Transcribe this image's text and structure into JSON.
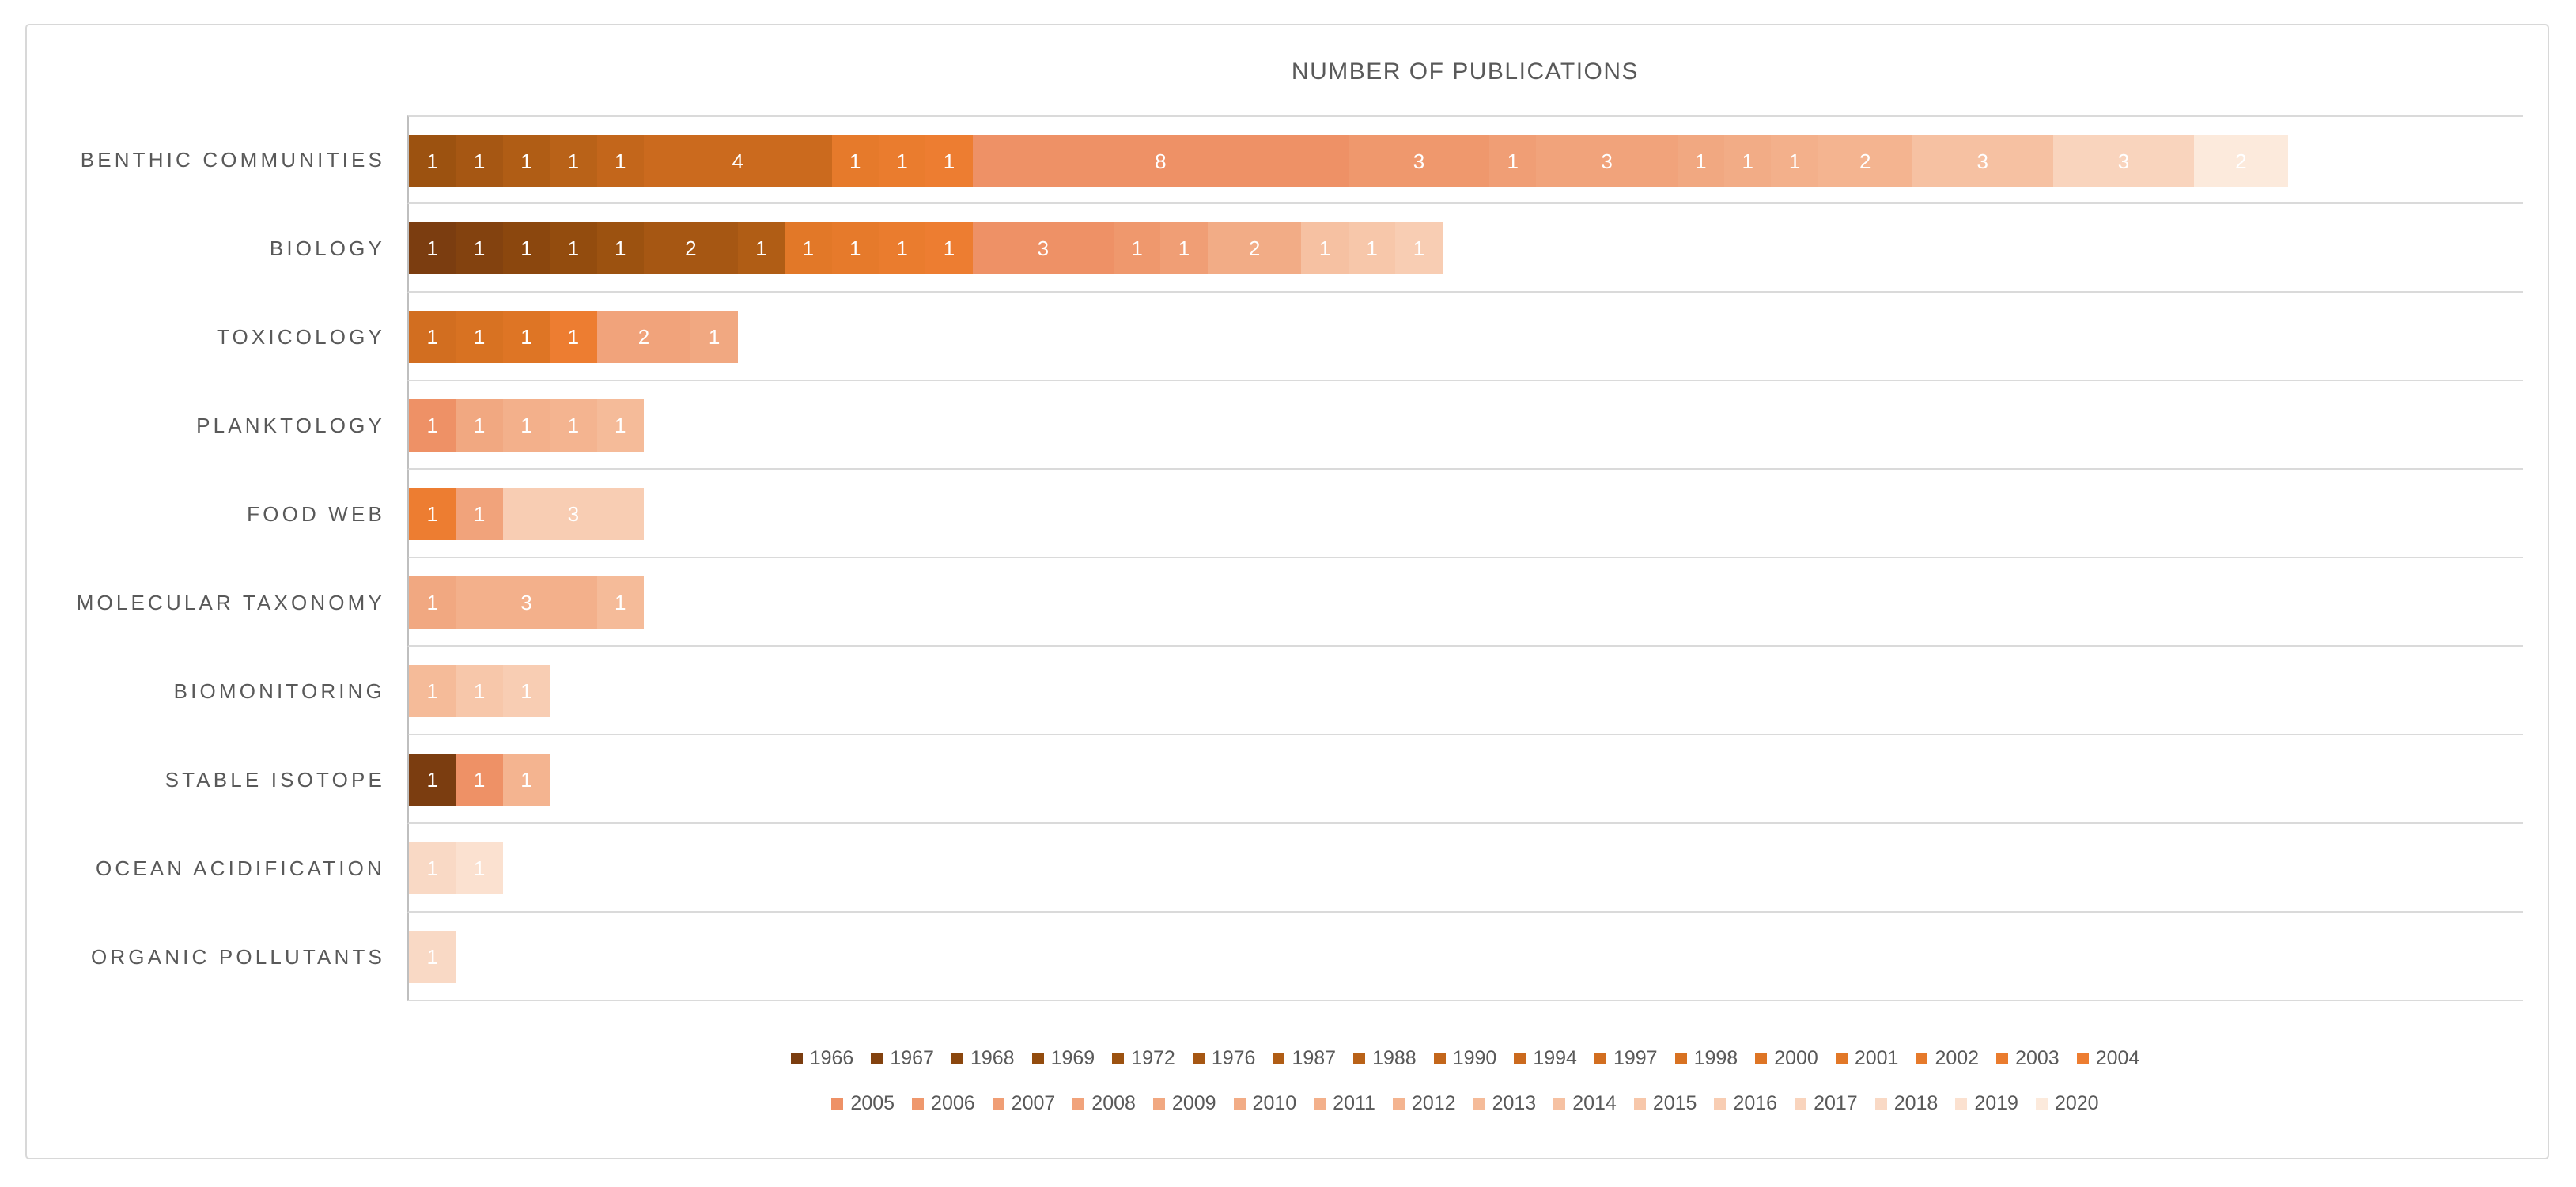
{
  "title": "NUMBER OF PUBLICATIONS",
  "styles": {
    "text_color": "#595959",
    "grid_color": "#DADADA",
    "axis_color": "#BFBFBF",
    "value_label_color": "#FFFFFF",
    "card_border_color": "#D8D8D8",
    "background": "#FFFFFF"
  },
  "chart_data": {
    "type": "bar",
    "orientation": "horizontal",
    "stacked": true,
    "title": "NUMBER OF PUBLICATIONS",
    "xlim": [
      0,
      45
    ],
    "grid": true,
    "legend_position": "bottom",
    "legend_rows": [
      [
        1966,
        1967,
        1968,
        1969,
        1972,
        1976,
        1987,
        1988,
        1990,
        1994,
        1997,
        1998,
        2000,
        2001,
        2002,
        2003,
        2004
      ],
      [
        2005,
        2006,
        2007,
        2008,
        2009,
        2010,
        2011,
        2012,
        2013,
        2014,
        2015,
        2016,
        2017,
        2018,
        2019,
        2020
      ]
    ],
    "year_colors": {
      "1966": "#7B3D10",
      "1967": "#83420F",
      "1968": "#8B470E",
      "1969": "#934C0E",
      "1972": "#9C5210",
      "1976": "#A65713",
      "1987": "#B05D15",
      "1988": "#B96218",
      "1990": "#C3661B",
      "1994": "#CB6A1E",
      "1997": "#D26E20",
      "1998": "#D87222",
      "2000": "#DE7525",
      "2001": "#E27828",
      "2002": "#E67A2B",
      "2003": "#EA7C2E",
      "2004": "#ED7D31",
      "2005": "#EE9166",
      "2006": "#EF986D",
      "2007": "#F09E75",
      "2008": "#F1A37B",
      "2009": "#F1A881",
      "2010": "#F2AC86",
      "2011": "#F3B08B",
      "2012": "#F4B490",
      "2013": "#F5BB99",
      "2014": "#F6C1A2",
      "2015": "#F7C7AA",
      "2016": "#F8CDB3",
      "2017": "#F9D4BD",
      "2018": "#F9D9C5",
      "2019": "#FBE1D0",
      "2020": "#FCEADC"
    },
    "rows": [
      {
        "category": "BENTHIC COMMUNITIES",
        "total": 40,
        "segments": [
          {
            "year": 1972,
            "value": 1
          },
          {
            "year": 1976,
            "value": 1
          },
          {
            "year": 1987,
            "value": 1
          },
          {
            "year": 1988,
            "value": 1
          },
          {
            "year": 1990,
            "value": 1
          },
          {
            "year": 1994,
            "value": 4
          },
          {
            "year": 2002,
            "value": 1
          },
          {
            "year": 2003,
            "value": 1
          },
          {
            "year": 2004,
            "value": 1
          },
          {
            "year": 2005,
            "value": 8
          },
          {
            "year": 2006,
            "value": 3
          },
          {
            "year": 2007,
            "value": 1
          },
          {
            "year": 2008,
            "value": 3
          },
          {
            "year": 2009,
            "value": 1
          },
          {
            "year": 2010,
            "value": 1
          },
          {
            "year": 2011,
            "value": 1
          },
          {
            "year": 2012,
            "value": 2
          },
          {
            "year": 2014,
            "value": 3
          },
          {
            "year": 2017,
            "value": 3
          },
          {
            "year": 2020,
            "value": 2
          }
        ]
      },
      {
        "category": "BIOLOGY",
        "total": 22,
        "segments": [
          {
            "year": 1966,
            "value": 1
          },
          {
            "year": 1967,
            "value": 1
          },
          {
            "year": 1968,
            "value": 1
          },
          {
            "year": 1969,
            "value": 1
          },
          {
            "year": 1972,
            "value": 1
          },
          {
            "year": 1976,
            "value": 2
          },
          {
            "year": 1987,
            "value": 1
          },
          {
            "year": 2001,
            "value": 1
          },
          {
            "year": 2002,
            "value": 1
          },
          {
            "year": 2003,
            "value": 1
          },
          {
            "year": 2004,
            "value": 1
          },
          {
            "year": 2005,
            "value": 3
          },
          {
            "year": 2006,
            "value": 1
          },
          {
            "year": 2007,
            "value": 1
          },
          {
            "year": 2010,
            "value": 2
          },
          {
            "year": 2014,
            "value": 1
          },
          {
            "year": 2015,
            "value": 1
          },
          {
            "year": 2016,
            "value": 1
          }
        ]
      },
      {
        "category": "TOXICOLOGY",
        "total": 7,
        "segments": [
          {
            "year": 1997,
            "value": 1
          },
          {
            "year": 1998,
            "value": 1
          },
          {
            "year": 2000,
            "value": 1
          },
          {
            "year": 2004,
            "value": 1
          },
          {
            "year": 2008,
            "value": 2
          },
          {
            "year": 2009,
            "value": 1
          }
        ]
      },
      {
        "category": "PLANKTOLOGY",
        "total": 5,
        "segments": [
          {
            "year": 2005,
            "value": 1
          },
          {
            "year": 2009,
            "value": 1
          },
          {
            "year": 2011,
            "value": 1
          },
          {
            "year": 2012,
            "value": 1
          },
          {
            "year": 2013,
            "value": 1
          }
        ]
      },
      {
        "category": "FOOD WEB",
        "total": 5,
        "segments": [
          {
            "year": 2004,
            "value": 1
          },
          {
            "year": 2008,
            "value": 1
          },
          {
            "year": 2016,
            "value": 3
          }
        ]
      },
      {
        "category": "MOLECULAR TAXONOMY",
        "total": 5,
        "segments": [
          {
            "year": 2009,
            "value": 1
          },
          {
            "year": 2011,
            "value": 3
          },
          {
            "year": 2013,
            "value": 1
          }
        ]
      },
      {
        "category": "BIOMONITORING",
        "total": 3,
        "segments": [
          {
            "year": 2013,
            "value": 1
          },
          {
            "year": 2015,
            "value": 1
          },
          {
            "year": 2016,
            "value": 1
          }
        ]
      },
      {
        "category": "STABLE ISOTOPE",
        "total": 3,
        "segments": [
          {
            "year": 1966,
            "value": 1
          },
          {
            "year": 2005,
            "value": 1
          },
          {
            "year": 2012,
            "value": 1
          }
        ]
      },
      {
        "category": "OCEAN ACIDIFICATION",
        "total": 2,
        "segments": [
          {
            "year": 2018,
            "value": 1
          },
          {
            "year": 2019,
            "value": 1
          }
        ]
      },
      {
        "category": "ORGANIC POLLUTANTS",
        "total": 1,
        "segments": [
          {
            "year": 2018,
            "value": 1
          }
        ]
      }
    ]
  }
}
